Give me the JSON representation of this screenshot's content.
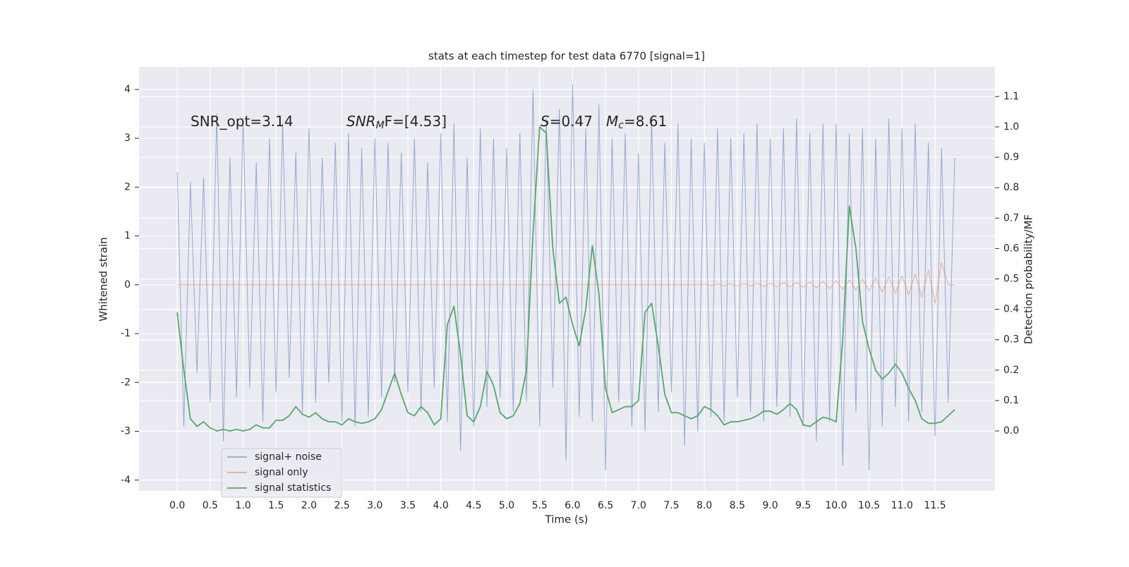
{
  "chart_data": {
    "type": "line",
    "title": "stats at each timestep for test data 6770 [signal=1]",
    "xlabel": "Time (s)",
    "ylabel": "Whitened strain",
    "y2label": "Detection probability/MF",
    "annotations": [
      {
        "text": "SNR_opt=3.14"
      },
      {
        "base": "SNR",
        "sub": "M",
        "rest": "F=[4.53]"
      },
      {
        "base": "S",
        "rest": "=0.47"
      },
      {
        "base": "M",
        "sub": "c",
        "rest": "=8.61"
      }
    ],
    "x": [
      0.0,
      0.1,
      0.2,
      0.3,
      0.4,
      0.5,
      0.6,
      0.7,
      0.8,
      0.9,
      1.0,
      1.1,
      1.2,
      1.3,
      1.4,
      1.5,
      1.6,
      1.7,
      1.8,
      1.9,
      2.0,
      2.1,
      2.2,
      2.3,
      2.4,
      2.5,
      2.6,
      2.7,
      2.8,
      2.9,
      3.0,
      3.1,
      3.2,
      3.3,
      3.4,
      3.5,
      3.6,
      3.7,
      3.8,
      3.9,
      4.0,
      4.1,
      4.2,
      4.3,
      4.4,
      4.5,
      4.6,
      4.7,
      4.8,
      4.9,
      5.0,
      5.1,
      5.2,
      5.3,
      5.4,
      5.5,
      5.6,
      5.7,
      5.8,
      5.9,
      6.0,
      6.1,
      6.2,
      6.3,
      6.4,
      6.5,
      6.6,
      6.7,
      6.8,
      6.9,
      7.0,
      7.1,
      7.2,
      7.3,
      7.4,
      7.5,
      7.6,
      7.7,
      7.8,
      7.9,
      8.0,
      8.1,
      8.2,
      8.3,
      8.4,
      8.5,
      8.6,
      8.7,
      8.8,
      8.9,
      9.0,
      9.1,
      9.2,
      9.3,
      9.4,
      9.5,
      9.6,
      9.7,
      9.8,
      9.9,
      10.0,
      10.1,
      10.2,
      10.3,
      10.4,
      10.5,
      10.6,
      10.7,
      10.8,
      10.9,
      11.0,
      11.1,
      11.2,
      11.3,
      11.4,
      11.5,
      11.6,
      11.7,
      11.8
    ],
    "series": [
      {
        "name": "signal+ noise",
        "color": "#4c72b0",
        "values": [
          2.3,
          -2.9,
          2.1,
          -1.8,
          2.2,
          -2.4,
          3.5,
          -3.2,
          2.6,
          -2.3,
          3.4,
          -2.1,
          2.5,
          -2.8,
          3.0,
          -2.2,
          3.3,
          -1.9,
          2.7,
          -2.6,
          3.2,
          -2.4,
          2.6,
          -2.0,
          2.9,
          -2.8,
          3.1,
          -2.9,
          2.8,
          -2.7,
          3.0,
          -2.3,
          2.9,
          -2.0,
          2.7,
          -2.2,
          3.0,
          -2.6,
          2.5,
          -2.1,
          3.1,
          -2.8,
          3.3,
          -3.4,
          2.6,
          -2.9,
          3.2,
          -2.5,
          3.0,
          -2.3,
          2.8,
          -2.6,
          3.1,
          -2.4,
          4.0,
          -2.9,
          3.4,
          -2.1,
          3.6,
          -3.6,
          4.1,
          -2.7,
          3.2,
          -2.8,
          3.7,
          -3.8,
          3.0,
          -2.4,
          3.1,
          -2.9,
          2.7,
          -3.0,
          3.4,
          -2.6,
          2.9,
          -2.2,
          3.3,
          -3.3,
          3.0,
          -3.0,
          2.9,
          -2.7,
          3.2,
          -2.8,
          3.0,
          -2.3,
          3.1,
          -2.6,
          3.3,
          -2.8,
          3.0,
          -2.5,
          3.2,
          -2.7,
          3.4,
          -2.9,
          3.1,
          -3.2,
          3.3,
          -2.8,
          3.3,
          -3.7,
          3.1,
          -2.6,
          3.2,
          -3.8,
          3.0,
          -2.9,
          3.4,
          -2.5,
          3.2,
          -2.8,
          3.3,
          -2.6,
          2.9,
          -3.1,
          2.8,
          -2.4,
          2.6
        ]
      },
      {
        "name": "signal only",
        "color": "#dd8452",
        "values": [
          0,
          0,
          0,
          0,
          0,
          0,
          0,
          0,
          0,
          0,
          0,
          0,
          0,
          0,
          0,
          0,
          0,
          0,
          0,
          0,
          0,
          0,
          0,
          0,
          0,
          0,
          0,
          0,
          0,
          0,
          0,
          0,
          0,
          0,
          0,
          0,
          0,
          0,
          0,
          0,
          0,
          0,
          0,
          0,
          0,
          0,
          0,
          0,
          0,
          0,
          0,
          0,
          0,
          0,
          0,
          0,
          0,
          0,
          0,
          0,
          0,
          0,
          0,
          0,
          0,
          0,
          0,
          0,
          0,
          0,
          0,
          0,
          0,
          0,
          0,
          0,
          0,
          0,
          0,
          0,
          0.01,
          -0.012,
          0.014,
          -0.016,
          0.018,
          -0.02,
          0.022,
          -0.025,
          0.028,
          -0.03,
          0.033,
          -0.036,
          0.04,
          -0.044,
          0.048,
          -0.053,
          0.058,
          -0.064,
          0.07,
          -0.077,
          0.085,
          -0.093,
          0.1,
          -0.11,
          0.12,
          -0.13,
          0.14,
          -0.15,
          0.16,
          -0.17,
          0.18,
          -0.2,
          0.22,
          -0.25,
          0.3,
          -0.38,
          0.45,
          0,
          0
        ]
      },
      {
        "name": "signal statistics",
        "color": "#55a868",
        "axis": "y2",
        "values": [
          0.39,
          0.2,
          0.04,
          0.015,
          0.03,
          0.01,
          0.0,
          0.005,
          0.0,
          0.005,
          0.0,
          0.005,
          0.02,
          0.01,
          0.01,
          0.035,
          0.035,
          0.05,
          0.08,
          0.055,
          0.045,
          0.06,
          0.04,
          0.03,
          0.03,
          0.02,
          0.04,
          0.03,
          0.025,
          0.03,
          0.04,
          0.07,
          0.13,
          0.19,
          0.12,
          0.06,
          0.05,
          0.08,
          0.06,
          0.02,
          0.04,
          0.35,
          0.41,
          0.25,
          0.05,
          0.03,
          0.08,
          0.195,
          0.15,
          0.06,
          0.04,
          0.05,
          0.09,
          0.2,
          0.65,
          1.0,
          0.98,
          0.6,
          0.42,
          0.44,
          0.35,
          0.28,
          0.4,
          0.61,
          0.45,
          0.14,
          0.06,
          0.07,
          0.08,
          0.08,
          0.1,
          0.39,
          0.42,
          0.28,
          0.12,
          0.06,
          0.06,
          0.05,
          0.04,
          0.05,
          0.08,
          0.07,
          0.05,
          0.02,
          0.03,
          0.03,
          0.035,
          0.04,
          0.05,
          0.065,
          0.065,
          0.055,
          0.07,
          0.09,
          0.07,
          0.02,
          0.015,
          0.03,
          0.045,
          0.04,
          0.03,
          0.3,
          0.74,
          0.6,
          0.36,
          0.27,
          0.2,
          0.17,
          0.19,
          0.22,
          0.19,
          0.14,
          0.1,
          0.04,
          0.025,
          0.025,
          0.03,
          0.05,
          0.07
        ]
      }
    ],
    "xlim": [
      -0.58,
      12.41
    ],
    "xticks": [
      {
        "value": 0,
        "label": "0.0"
      },
      0.5,
      {
        "value": 1,
        "label": "1.0"
      },
      1.5,
      {
        "value": 2,
        "label": "2.0"
      },
      2.5,
      {
        "value": 3,
        "label": "3.0"
      },
      3.5,
      {
        "value": 4,
        "label": "4.0"
      },
      4.5,
      {
        "value": 5,
        "label": "5.0"
      },
      5.5,
      {
        "value": 6,
        "label": "6.0"
      },
      6.5,
      {
        "value": 7,
        "label": "7.0"
      },
      7.5,
      {
        "value": 8,
        "label": "8.0"
      },
      8.5,
      {
        "value": 9,
        "label": "9.0"
      },
      9.5,
      {
        "value": 10,
        "label": "10.0"
      },
      10.5,
      {
        "value": 11,
        "label": "11.0"
      },
      11.5
    ],
    "ylim": [
      -4.22,
      4.46
    ],
    "yticks": [
      -4,
      -3,
      -2,
      -1,
      0,
      1,
      2,
      3,
      4
    ],
    "y2lim": [
      -0.197,
      1.197
    ],
    "y2ticks": [
      {
        "value": 0,
        "label": "0.0"
      },
      0.1,
      0.2,
      0.3,
      0.4,
      0.5,
      0.6,
      0.7,
      0.8,
      0.9,
      {
        "value": 1,
        "label": "1.0"
      },
      1.1
    ],
    "grid": true,
    "legend": "lower left"
  }
}
